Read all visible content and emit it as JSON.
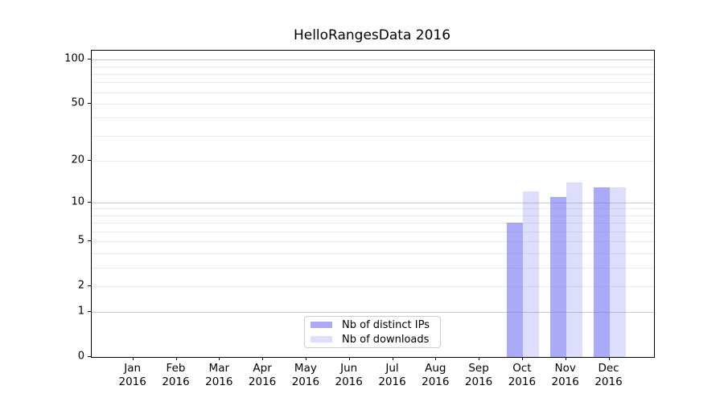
{
  "chart_data": {
    "type": "bar",
    "title": "HelloRangesData 2016",
    "categories": [
      "Jan",
      "Feb",
      "Mar",
      "Apr",
      "May",
      "Jun",
      "Jul",
      "Aug",
      "Sep",
      "Oct",
      "Nov",
      "Dec"
    ],
    "category_year": "2016",
    "series": [
      {
        "name": "Nb of distinct IPs",
        "color": "rgba(100,100,240,0.55)",
        "values": [
          0,
          0,
          0,
          0,
          0,
          0,
          0,
          0,
          0,
          7,
          11,
          13
        ]
      },
      {
        "name": "Nb of downloads",
        "color": "rgba(100,100,240,0.22)",
        "values": [
          0,
          0,
          0,
          0,
          0,
          0,
          0,
          0,
          0,
          12,
          14,
          13
        ]
      }
    ],
    "yaxis": {
      "scale": "log1p",
      "ylim": [
        0,
        115
      ],
      "tick_labels": [
        0,
        1,
        2,
        5,
        10,
        20,
        50,
        100
      ],
      "major_gridlines": [
        1,
        10,
        100
      ],
      "minor_gridlines": [
        2,
        3,
        4,
        5,
        6,
        7,
        8,
        9,
        20,
        30,
        40,
        50,
        60,
        70,
        80,
        90
      ]
    },
    "legend": {
      "position": "lower center"
    },
    "colors": {
      "grid_major": "#c9c9c9",
      "grid_minor": "#eaeaea",
      "axis": "#000000",
      "legend_border": "#cccccc"
    }
  }
}
